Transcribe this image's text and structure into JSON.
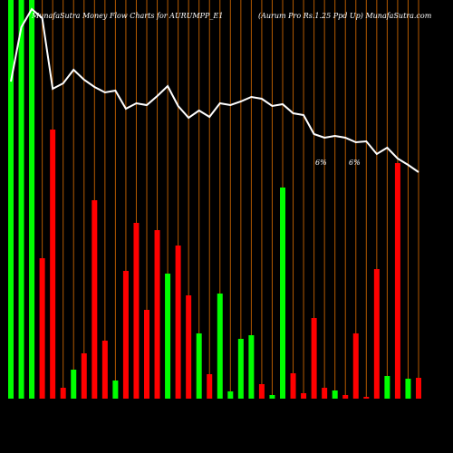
{
  "chart_data": {
    "type": "bar-line",
    "title": "MunafaSutra  Money Flow  Charts for AURUMPP_E1",
    "subtitle": "(Aurum Pro  Rs.1.25 Ppd Up) MunafaSutra.com",
    "annotations": [
      "6%",
      "6%"
    ],
    "grid": true,
    "grid_color": "#b35900",
    "background": "#000000",
    "series": [
      {
        "type": "bar",
        "values": [
          440,
          440,
          440,
          155,
          297,
          12,
          32,
          50,
          219,
          64,
          20,
          141,
          194,
          98,
          186,
          138,
          169,
          114,
          72,
          27,
          116,
          8,
          66,
          70,
          16,
          4,
          233,
          28,
          6,
          89,
          12,
          9,
          4,
          72,
          2,
          143,
          25,
          260,
          22,
          23
        ],
        "colors": [
          "#00ff00",
          "#00ff00",
          "#00ff00",
          "#ff0000",
          "#ff0000",
          "#ff0000",
          "#00ff00",
          "#ff0000",
          "#ff0000",
          "#ff0000",
          "#00ff00",
          "#ff0000",
          "#ff0000",
          "#ff0000",
          "#ff0000",
          "#00ff00",
          "#ff0000",
          "#ff0000",
          "#00ff00",
          "#ff0000",
          "#00ff00",
          "#00ff00",
          "#00ff00",
          "#00ff00",
          "#ff0000",
          "#00ff00",
          "#00ff00",
          "#ff0000",
          "#ff0000",
          "#ff0000",
          "#ff0000",
          "#00ff00",
          "#ff0000",
          "#ff0000",
          "#ff0000",
          "#ff0000",
          "#00ff00",
          "#ff0000",
          "#00ff00",
          "#ff0000"
        ]
      },
      {
        "type": "line",
        "color": "#ffffff",
        "values": [
          350,
          410,
          430,
          420,
          342,
          348,
          363,
          352,
          344,
          338,
          340,
          320,
          326,
          324,
          334,
          345,
          323,
          310,
          318,
          311,
          326,
          324,
          328,
          333,
          331,
          323,
          325,
          315,
          313,
          292,
          288,
          290,
          288,
          283,
          284,
          270,
          277,
          265,
          258,
          250
        ]
      }
    ],
    "ylim": [
      0,
      440
    ]
  }
}
